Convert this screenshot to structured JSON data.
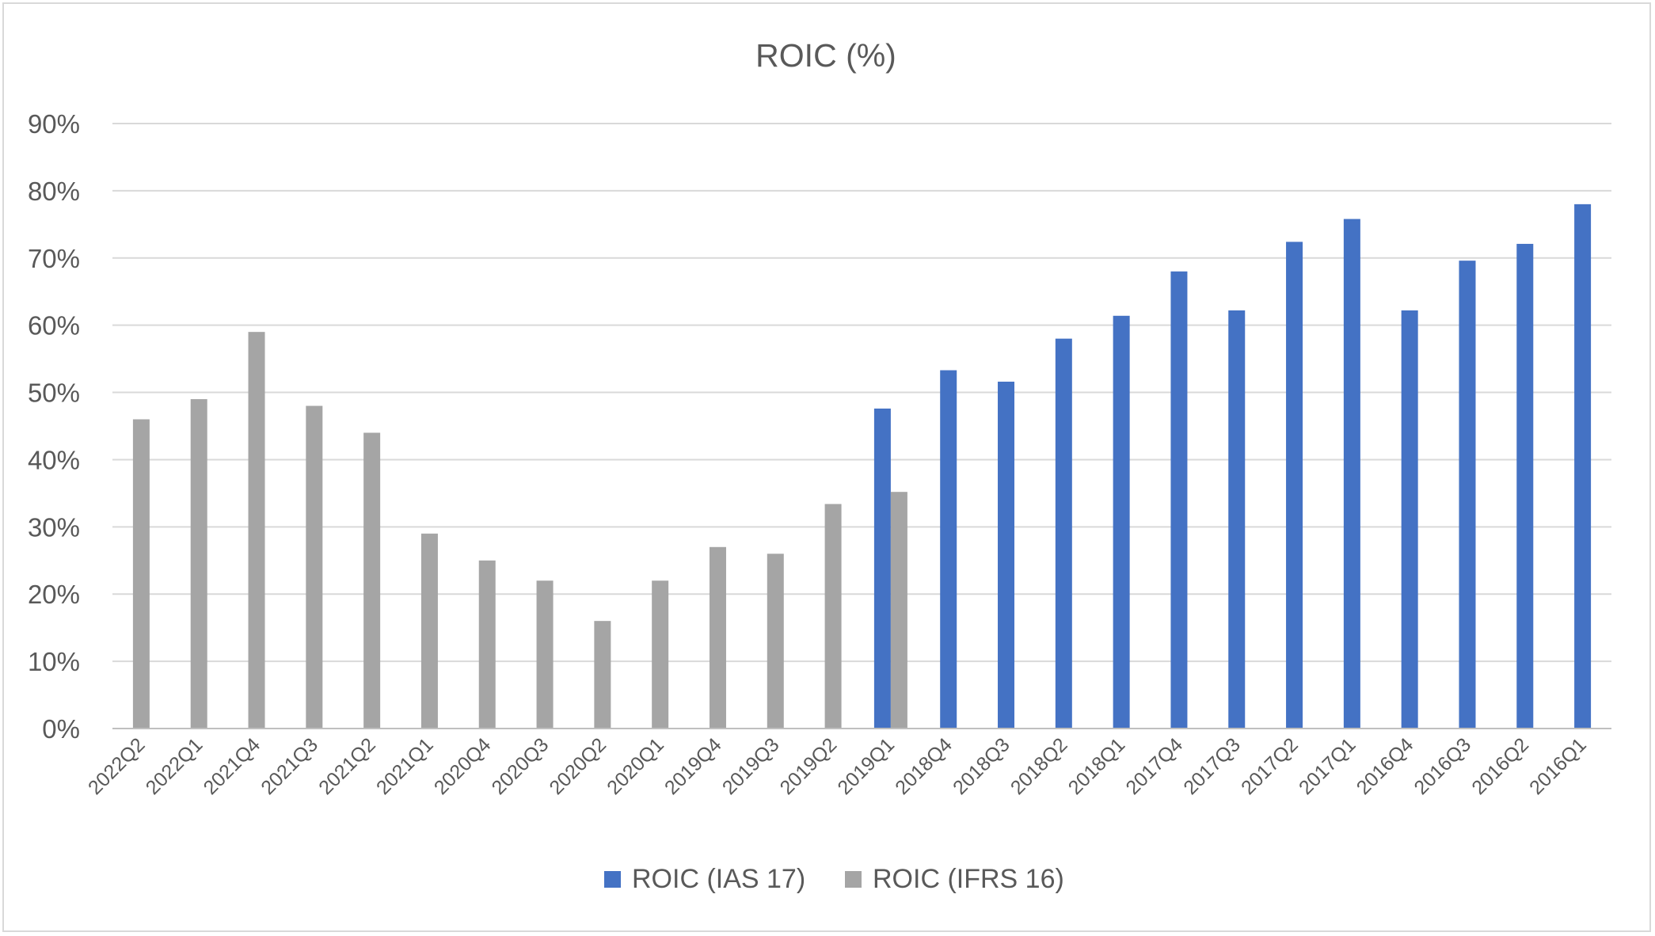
{
  "chart_data": {
    "type": "bar",
    "title": "ROIC (%)",
    "xlabel": "",
    "ylabel": "",
    "ylim": [
      0,
      90
    ],
    "yticks": [
      0,
      10,
      20,
      30,
      40,
      50,
      60,
      70,
      80,
      90
    ],
    "ytick_labels": [
      "0%",
      "10%",
      "20%",
      "30%",
      "40%",
      "50%",
      "60%",
      "70%",
      "80%",
      "90%"
    ],
    "grid": true,
    "legend_position": "bottom",
    "categories": [
      "2022Q2",
      "2022Q1",
      "2021Q4",
      "2021Q3",
      "2021Q2",
      "2021Q1",
      "2020Q4",
      "2020Q3",
      "2020Q2",
      "2020Q1",
      "2019Q4",
      "2019Q3",
      "2019Q2",
      "2019Q1",
      "2018Q4",
      "2018Q3",
      "2018Q2",
      "2018Q1",
      "2017Q4",
      "2017Q3",
      "2017Q2",
      "2017Q1",
      "2016Q4",
      "2016Q3",
      "2016Q2",
      "2016Q1"
    ],
    "series": [
      {
        "name": "ROIC (IAS 17)",
        "color": "#4472c4",
        "values": [
          null,
          null,
          null,
          null,
          null,
          null,
          null,
          null,
          null,
          null,
          null,
          null,
          null,
          47.6,
          53.3,
          51.6,
          58.0,
          61.4,
          68.0,
          62.2,
          72.4,
          75.8,
          62.2,
          69.6,
          72.1,
          78.0
        ]
      },
      {
        "name": "ROIC (IFRS 16)",
        "color": "#a5a5a5",
        "values": [
          46,
          49,
          59,
          48,
          44,
          29,
          25,
          22,
          16,
          22,
          27,
          26,
          33.4,
          35.2,
          null,
          null,
          null,
          null,
          null,
          null,
          null,
          null,
          null,
          null,
          null,
          null
        ]
      }
    ]
  }
}
